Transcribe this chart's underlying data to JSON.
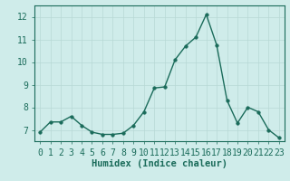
{
  "x": [
    0,
    1,
    2,
    3,
    4,
    5,
    6,
    7,
    8,
    9,
    10,
    11,
    12,
    13,
    14,
    15,
    16,
    17,
    18,
    19,
    20,
    21,
    22,
    23
  ],
  "y": [
    6.9,
    7.35,
    7.35,
    7.6,
    7.2,
    6.9,
    6.8,
    6.8,
    6.85,
    7.2,
    7.8,
    8.85,
    8.9,
    10.1,
    10.7,
    11.1,
    12.1,
    10.75,
    8.3,
    7.3,
    8.0,
    7.8,
    7.0,
    6.65
  ],
  "line_color": "#1a6b5a",
  "marker": "o",
  "markersize": 2.5,
  "linewidth": 1.0,
  "xlabel": "Humidex (Indice chaleur)",
  "xlim": [
    -0.5,
    23.5
  ],
  "ylim": [
    6.5,
    12.5
  ],
  "yticks": [
    7,
    8,
    9,
    10,
    11,
    12
  ],
  "xticks": [
    0,
    1,
    2,
    3,
    4,
    5,
    6,
    7,
    8,
    9,
    10,
    11,
    12,
    13,
    14,
    15,
    16,
    17,
    18,
    19,
    20,
    21,
    22,
    23
  ],
  "background_color": "#cfecea",
  "grid_color": "#b8d8d5",
  "spine_color": "#1a6b5a",
  "tick_color": "#1a6b5a",
  "label_color": "#1a6b5a",
  "xlabel_fontsize": 7.5,
  "tick_fontsize": 7
}
